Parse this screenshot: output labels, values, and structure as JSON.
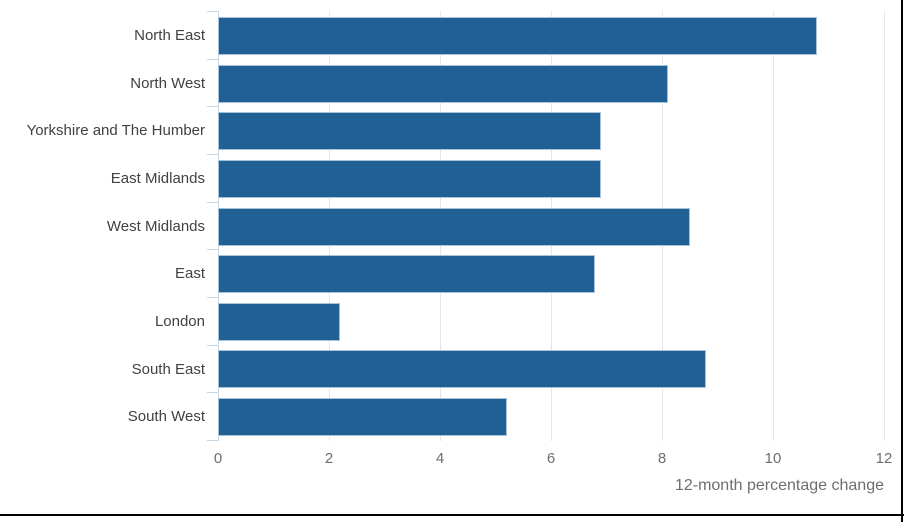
{
  "chart_data": {
    "type": "bar",
    "orientation": "horizontal",
    "title": "",
    "xlabel": "12-month percentage change",
    "ylabel": "",
    "categories": [
      "North East",
      "North West",
      "Yorkshire and The Humber",
      "East Midlands",
      "West Midlands",
      "East",
      "London",
      "South East",
      "South West"
    ],
    "values": [
      10.8,
      8.1,
      6.9,
      6.9,
      8.5,
      6.8,
      2.2,
      8.8,
      5.2
    ],
    "xlim": [
      0,
      12
    ],
    "xticks": [
      0,
      2,
      4,
      6,
      8,
      10,
      12
    ],
    "grid": true,
    "legend": false,
    "colors": {
      "bar_fill": "#206095",
      "bar_border": "#a6c3da",
      "gridline": "#e6e6e6",
      "axis_line": "#c9d6e3",
      "category_label": "#414042",
      "tick_label": "#6e6e6e",
      "axis_title": "#6e6e6e",
      "frame_border": "#000000"
    }
  }
}
